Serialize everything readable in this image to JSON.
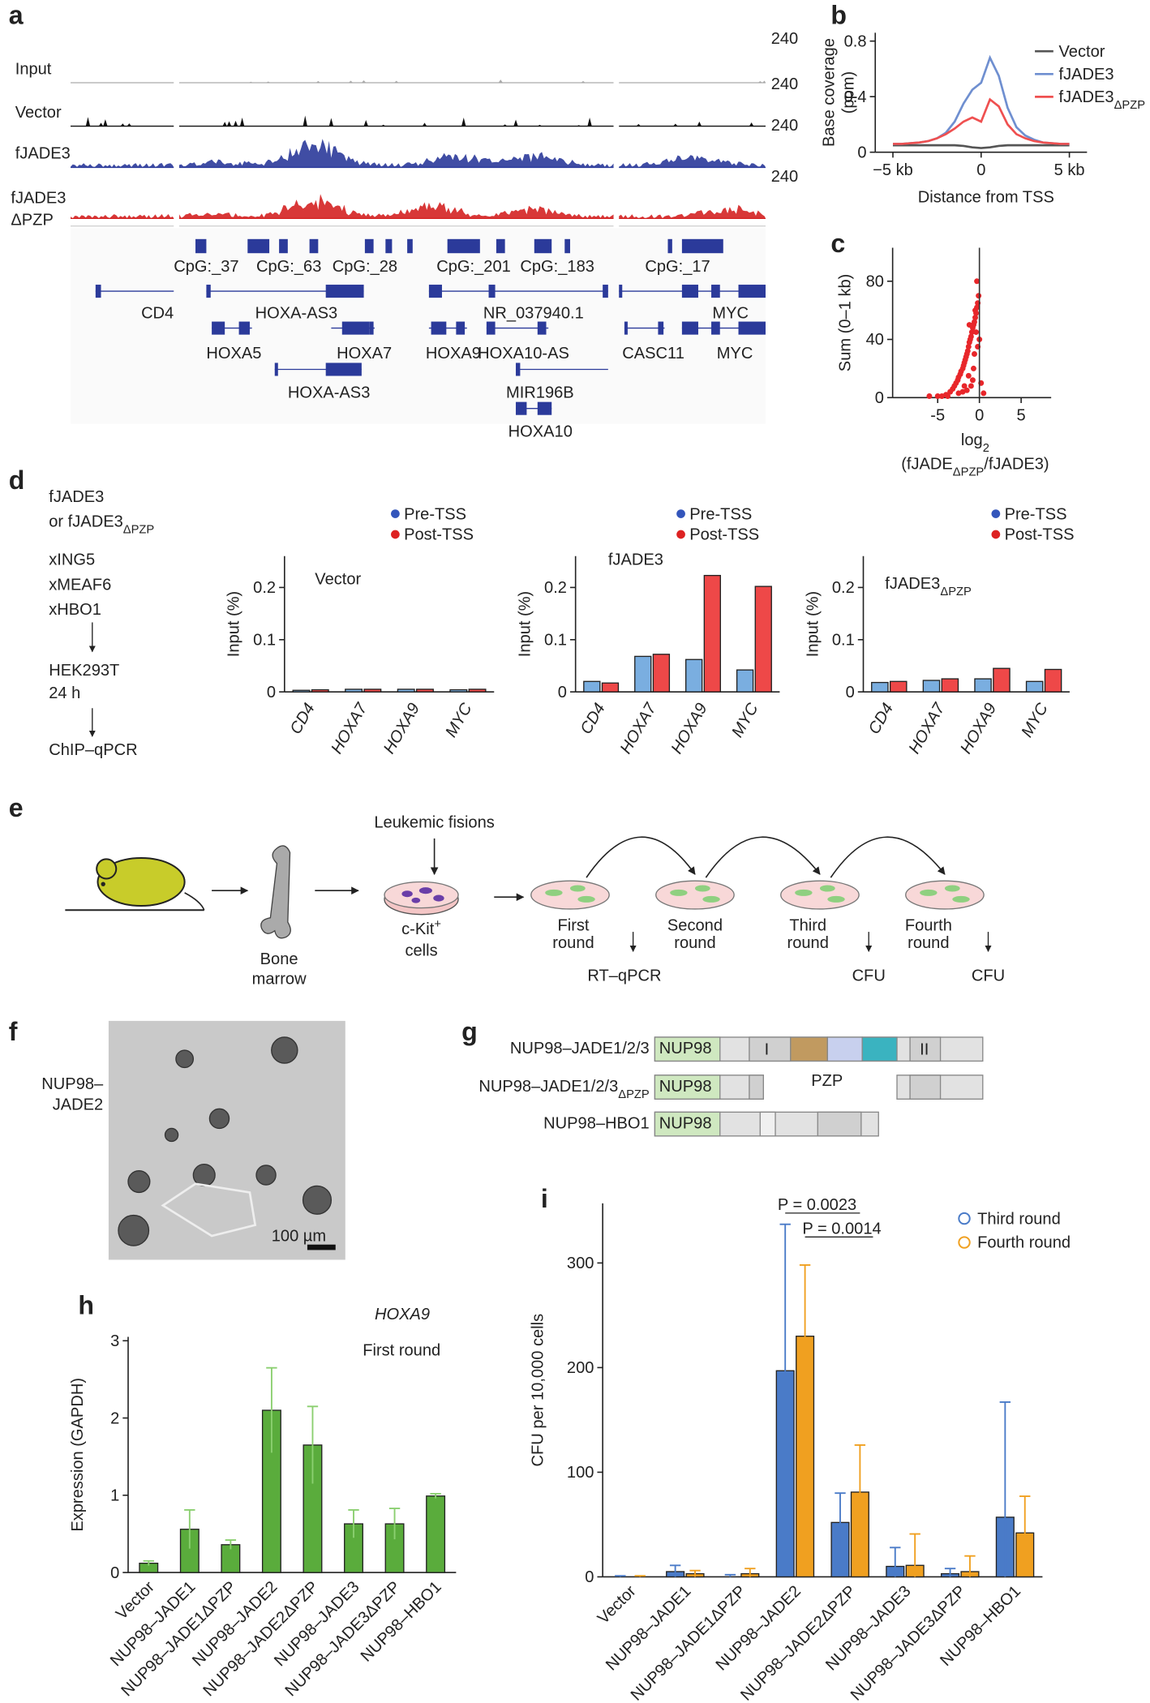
{
  "panel_labels": [
    "a",
    "b",
    "c",
    "d",
    "e",
    "f",
    "g",
    "h",
    "i"
  ],
  "genome": {
    "tracks": [
      {
        "name": "Input",
        "scale": "240"
      },
      {
        "name": "Vector",
        "scale": "240"
      },
      {
        "name": "fJADE3",
        "scale": "240"
      },
      {
        "name": "fJADE3",
        "sub": "ΔPZP",
        "scale": "240"
      }
    ],
    "cpg": [
      "CpG:_37",
      "CpG:_63",
      "CpG:_28",
      "CpG:_201",
      "CpG:_183",
      "CpG:_17"
    ],
    "genes": [
      "CD4",
      "HOXA-AS3",
      "NR_037940.1",
      "MYC",
      "HOXA5",
      "HOXA7",
      "HOXA9",
      "HOXA10-AS",
      "CASC11",
      "MYC",
      "HOXA-AS3",
      "MIR196B",
      "HOXA10"
    ]
  },
  "workflow": {
    "steps": [
      "fJADE3",
      {
        "text": "or fJADE3",
        "sub": "ΔPZP"
      },
      "xING5",
      "xMEAF6",
      "xHBO1",
      "HEK293T",
      "24 h",
      "ChIP–qPCR"
    ]
  },
  "scheme": {
    "fusions": "Leukemic fisions",
    "bone": [
      "Bone",
      "marrow"
    ],
    "ckit": {
      "text": "c-Kit",
      "sup": "+",
      "line2": "cells"
    },
    "rounds": [
      [
        "First",
        "round"
      ],
      [
        "Second",
        "round"
      ],
      [
        "Third",
        "round"
      ],
      [
        "Fourth",
        "round"
      ]
    ],
    "assays": [
      "RT–qPCR",
      "CFU",
      "CFU"
    ]
  },
  "image": {
    "label": [
      "NUP98–",
      "JADE2"
    ],
    "scale_bar": "100 µm"
  },
  "domains": {
    "constructs": [
      {
        "name": "NUP98–JADE1/2/3",
        "domain": "NUP98"
      },
      {
        "name": "NUP98–JADE1/2/3",
        "sub": "ΔPZP",
        "domain": "NUP98"
      },
      {
        "name": "NUP98–HBO1",
        "domain": "NUP98"
      }
    ],
    "regions": [
      "I",
      "II",
      "PZP"
    ]
  },
  "chart_data": [
    {
      "type": "line",
      "y_label": [
        "Base coverage",
        "(ppm)"
      ],
      "x_label": "Distance from TSS",
      "x": [
        -5,
        -4.5,
        -4,
        -3.5,
        -3,
        -2.5,
        -2,
        -1.5,
        -1,
        -0.5,
        0,
        0.5,
        1,
        1.5,
        2,
        2.5,
        3,
        3.5,
        4,
        4.5,
        5
      ],
      "xlim": [
        -6,
        6
      ],
      "xticks": [
        {
          "value": -5,
          "label": "−5 kb"
        },
        0,
        {
          "value": 5,
          "label": "5 kb"
        }
      ],
      "ylim": [
        0,
        0.86
      ],
      "yticks": [
        0,
        0.4,
        0.8
      ],
      "series": [
        {
          "name": "Vector",
          "color": "#555555",
          "values": [
            0.05,
            0.05,
            0.05,
            0.05,
            0.05,
            0.05,
            0.05,
            0.05,
            0.045,
            0.035,
            0.03,
            0.035,
            0.045,
            0.05,
            0.05,
            0.05,
            0.05,
            0.05,
            0.05,
            0.05,
            0.05
          ]
        },
        {
          "name": "fJADE3",
          "color": "#6f8fd0",
          "values": [
            0.06,
            0.06,
            0.065,
            0.07,
            0.08,
            0.1,
            0.14,
            0.22,
            0.35,
            0.45,
            0.5,
            0.68,
            0.55,
            0.32,
            0.18,
            0.12,
            0.09,
            0.07,
            0.065,
            0.06,
            0.06
          ]
        },
        {
          "name": "fJADE3",
          "sub": "ΔPZP",
          "color": "#ef5050",
          "values": [
            0.06,
            0.06,
            0.065,
            0.07,
            0.08,
            0.1,
            0.13,
            0.17,
            0.22,
            0.25,
            0.22,
            0.38,
            0.33,
            0.2,
            0.13,
            0.1,
            0.08,
            0.07,
            0.065,
            0.06,
            0.06
          ]
        }
      ]
    },
    {
      "type": "scatter",
      "y_label": "Sum (0–1 kb)",
      "x_label": {
        "text": "log",
        "sub": "2"
      },
      "x_label2": {
        "text": "(fJADE",
        "sub": "ΔPZP",
        "rest": "/fJADE3)"
      },
      "xlim": [
        -10.4,
        8.6
      ],
      "xticks": [
        -5,
        0,
        5
      ],
      "ylim": [
        0,
        103
      ],
      "yticks": [
        0,
        40,
        80
      ],
      "color": "#e8262a",
      "vline": 0,
      "x": [
        -4,
        -3.5,
        -3.2,
        -3,
        -2.8,
        -2.6,
        -2.5,
        -2.3,
        -2.2,
        -2,
        -1.9,
        -1.8,
        -1.7,
        -1.6,
        -1.5,
        -1.4,
        -1.3,
        -1.2,
        -1.1,
        -1,
        -0.9,
        -0.8,
        -0.7,
        -0.6,
        -0.5,
        -0.4,
        -0.3,
        -0.2,
        -0.1,
        0,
        0.2,
        0.5,
        -5,
        -6,
        -1.5,
        -1,
        -0.8,
        -0.6,
        -0.4,
        -0.3,
        -0.5,
        -1.2,
        -2.5,
        -3.8,
        -4.5,
        -0.7,
        -0.2,
        -1.8,
        -2,
        -1.3
      ],
      "values": [
        2,
        4,
        6,
        8,
        10,
        12,
        14,
        16,
        18,
        20,
        22,
        24,
        26,
        28,
        30,
        32,
        35,
        38,
        40,
        42,
        45,
        48,
        50,
        52,
        55,
        58,
        62,
        65,
        70,
        40,
        10,
        3,
        1,
        1,
        5,
        8,
        12,
        30,
        45,
        80,
        60,
        50,
        3,
        1,
        1,
        20,
        35,
        8,
        4,
        15
      ]
    },
    {
      "type": "bar",
      "title": "Vector",
      "y_label": "Input (%)",
      "categories": [
        "CD4",
        "HOXA7",
        "HOXA9",
        "MYC"
      ],
      "ylim": [
        0,
        0.26
      ],
      "yticks": [
        0,
        0.1,
        0.2
      ],
      "series": [
        {
          "name": "Pre-TSS",
          "color": "#7aaee0",
          "dot": "#3355bb",
          "values": [
            0.003,
            0.005,
            0.005,
            0.004
          ]
        },
        {
          "name": "Post-TSS",
          "color": "#ee4848",
          "dot": "#dd2222",
          "values": [
            0.004,
            0.005,
            0.005,
            0.005
          ]
        }
      ]
    },
    {
      "type": "bar",
      "title": "fJADE3",
      "y_label": "Input (%)",
      "categories": [
        "CD4",
        "HOXA7",
        "HOXA9",
        "MYC"
      ],
      "ylim": [
        0,
        0.26
      ],
      "yticks": [
        0,
        0.1,
        0.2
      ],
      "series": [
        {
          "name": "Pre-TSS",
          "color": "#7aaee0",
          "dot": "#3355bb",
          "values": [
            0.02,
            0.068,
            0.062,
            0.042
          ]
        },
        {
          "name": "Post-TSS",
          "color": "#ee4848",
          "dot": "#dd2222",
          "values": [
            0.017,
            0.072,
            0.223,
            0.202
          ]
        }
      ]
    },
    {
      "type": "bar",
      "title": "fJADE3",
      "title_sub": "ΔPZP",
      "y_label": "Input (%)",
      "categories": [
        "CD4",
        "HOXA7",
        "HOXA9",
        "MYC"
      ],
      "ylim": [
        0,
        0.26
      ],
      "yticks": [
        0,
        0.1,
        0.2
      ],
      "series": [
        {
          "name": "Pre-TSS",
          "color": "#7aaee0",
          "dot": "#3355bb",
          "values": [
            0.018,
            0.022,
            0.025,
            0.02
          ]
        },
        {
          "name": "Post-TSS",
          "color": "#ee4848",
          "dot": "#dd2222",
          "values": [
            0.02,
            0.025,
            0.045,
            0.043
          ]
        }
      ]
    },
    {
      "type": "bar",
      "y_label": "Expression (GAPDH)",
      "annotations": [
        "HOXA9",
        "First round"
      ],
      "categories": [
        "Vector",
        "NUP98–JADE1",
        "NUP98–JADE1ΔPZP",
        "NUP98–JADE2",
        "NUP98–JADE2ΔPZP",
        "NUP98–JADE3",
        "NUP98–JADE3ΔPZP",
        "NUP98–HBO1"
      ],
      "ylim": [
        0,
        3.05
      ],
      "yticks": [
        0,
        1,
        2,
        3
      ],
      "series": [
        {
          "color": "#5aac3c",
          "values": [
            0.12,
            0.56,
            0.36,
            2.1,
            1.65,
            0.63,
            0.63,
            0.99
          ],
          "errors": [
            0.03,
            0.25,
            0.06,
            0.55,
            0.5,
            0.18,
            0.2,
            0.03
          ]
        }
      ]
    },
    {
      "type": "bar",
      "y_label": "CFU per 10,000 cells",
      "annotations": [
        "P = 0.0023",
        "P = 0.0014"
      ],
      "categories": [
        "Vector",
        "NUP98–JADE1",
        "NUP98–JADE1ΔPZP",
        "NUP98–JADE2",
        "NUP98–JADE2ΔPZP",
        "NUP98–JADE3",
        "NUP98–JADE3ΔPZP",
        "NUP98–HBO1"
      ],
      "ylim": [
        0,
        357
      ],
      "yticks": [
        0,
        100,
        200,
        300
      ],
      "series": [
        {
          "name": "Third round",
          "color": "#4a7bc8",
          "values": [
            0,
            5,
            0,
            197,
            52,
            10,
            3,
            57
          ],
          "errors": [
            1,
            6,
            2,
            140,
            28,
            18,
            5,
            110
          ]
        },
        {
          "name": "Fourth round",
          "color": "#f0a020",
          "values": [
            0,
            3,
            3,
            230,
            81,
            11,
            5,
            42
          ],
          "errors": [
            1,
            3,
            5,
            68,
            45,
            30,
            15,
            35
          ]
        }
      ]
    }
  ]
}
